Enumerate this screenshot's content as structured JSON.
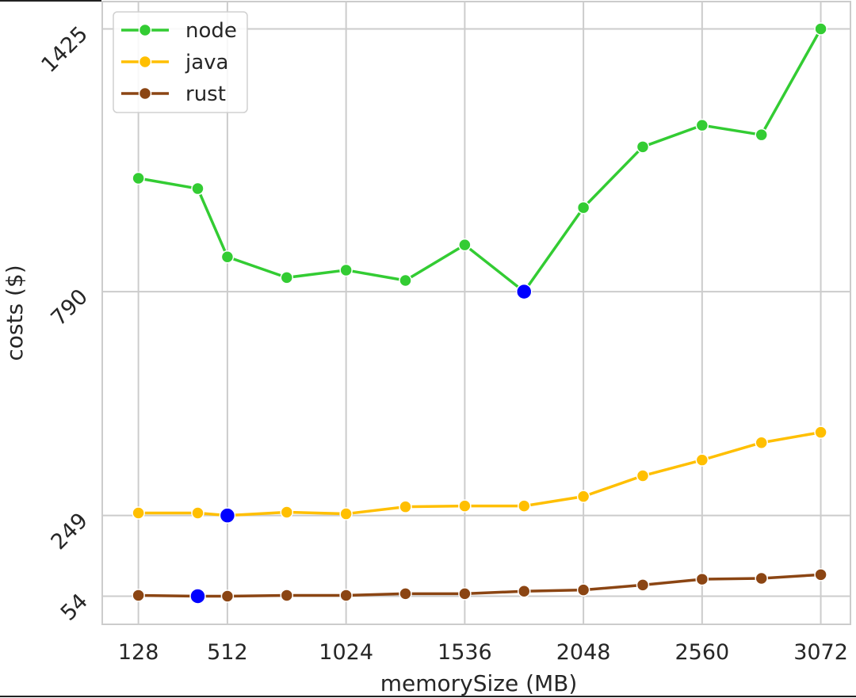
{
  "chart_data": {
    "type": "line",
    "title": "",
    "xlabel": "memorySize (MB)",
    "ylabel": "costs ($)",
    "x": [
      128,
      384,
      512,
      768,
      1024,
      1280,
      1536,
      1792,
      2048,
      2304,
      2560,
      2816,
      3072
    ],
    "x_ticks": [
      128,
      512,
      1024,
      1536,
      2048,
      2560,
      3072
    ],
    "y_ticks": [
      54,
      249,
      790,
      1425
    ],
    "xlim": [
      -28,
      3200
    ],
    "ylim": [
      -14,
      1491
    ],
    "grid": true,
    "legend_position": "top-left",
    "highlight_minimum_color": "#0000ff",
    "series": [
      {
        "name": "node",
        "color": "#33cc33",
        "values": [
          1064,
          1039,
          874,
          824,
          842,
          817,
          903,
          790,
          993,
          1140,
          1192,
          1169,
          1425
        ]
      },
      {
        "name": "java",
        "color": "#ffbf00",
        "values": [
          255,
          255,
          249,
          257,
          253,
          270,
          272,
          272,
          295,
          345,
          383,
          425,
          450
        ]
      },
      {
        "name": "rust",
        "color": "#8b4513",
        "values": [
          56,
          54,
          54,
          56,
          56,
          60,
          60,
          66,
          69,
          81,
          95,
          97,
          106
        ]
      }
    ]
  }
}
